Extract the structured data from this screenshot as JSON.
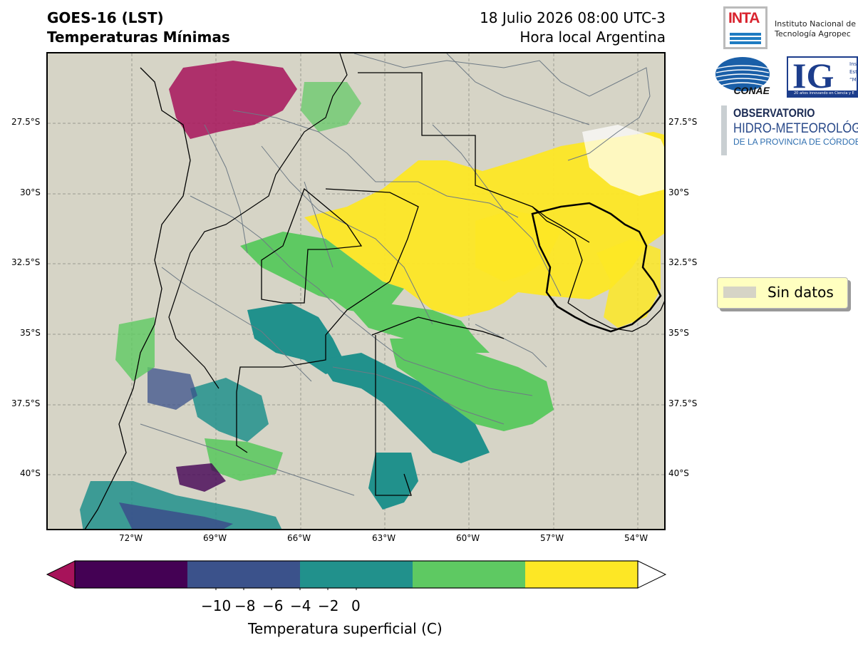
{
  "header": {
    "title_line1": "GOES-16 (LST)",
    "title_line2": "Temperaturas Mínimas",
    "datetime": "18 Julio 2026 08:00 UTC-3",
    "timezone_note": "Hora local Argentina"
  },
  "map": {
    "lat_labels": [
      "27.5°S",
      "30°S",
      "32.5°S",
      "35°S",
      "37.5°S",
      "40°S"
    ],
    "lon_labels": [
      "72°W",
      "69°W",
      "66°W",
      "63°W",
      "60°W",
      "57°W",
      "54°W"
    ],
    "background_color": "#d6d4c6"
  },
  "logos": {
    "inta_mark": "INTA",
    "inta_text_line1": "Instituto Nacional de",
    "inta_text_line2": "Tecnología Agropec",
    "conae_mark": "CONAE",
    "ig_mark": "IG",
    "ig_small_1": "Ins",
    "ig_small_2": "Est",
    "ig_small_3": "“M",
    "ig_strip": "20 años innovando en Ciencia y E",
    "obs_line1": "OBSERVATORIO",
    "obs_line2": "HIDRO-METEOROLÓG",
    "obs_line3": "DE LA PROVINCIA DE CÓRDOBA"
  },
  "legend": {
    "label": "Sin datos",
    "color": "#d6d4c6"
  },
  "colorbar": {
    "label": "Temperatura superficial (C)",
    "tick_labels": [
      "−10",
      "−8",
      "−6",
      "−4",
      "−2",
      "0"
    ],
    "colors": [
      "#a7135a",
      "#440154",
      "#3b528b",
      "#21918c",
      "#5ec962",
      "#fde725",
      "#ffffff"
    ]
  }
}
